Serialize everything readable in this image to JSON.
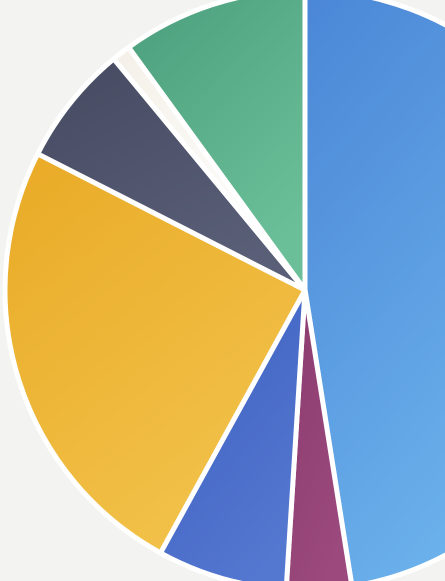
{
  "chart_data": {
    "type": "pie",
    "title": "",
    "start_angle_deg": 0,
    "direction": "clockwise",
    "slices": [
      {
        "value": 47.5,
        "color": "#4a86d6",
        "color_light": "#6fb6ee"
      },
      {
        "value": 3.5,
        "color": "#8a3b6e",
        "color_light": "#9c4a7e"
      },
      {
        "value": 7.0,
        "color": "#3d5fc0",
        "color_light": "#5477d0"
      },
      {
        "value": 24.5,
        "color": "#e9aa26",
        "color_light": "#f2c24a"
      },
      {
        "value": 6.5,
        "color": "#454a61",
        "color_light": "#5a5f78"
      },
      {
        "value": 1.0,
        "color": "#f4f0e8",
        "color_light": "#ffffff"
      },
      {
        "value": 10.0,
        "color": "#4a9e7c",
        "color_light": "#6bbf98"
      }
    ]
  }
}
